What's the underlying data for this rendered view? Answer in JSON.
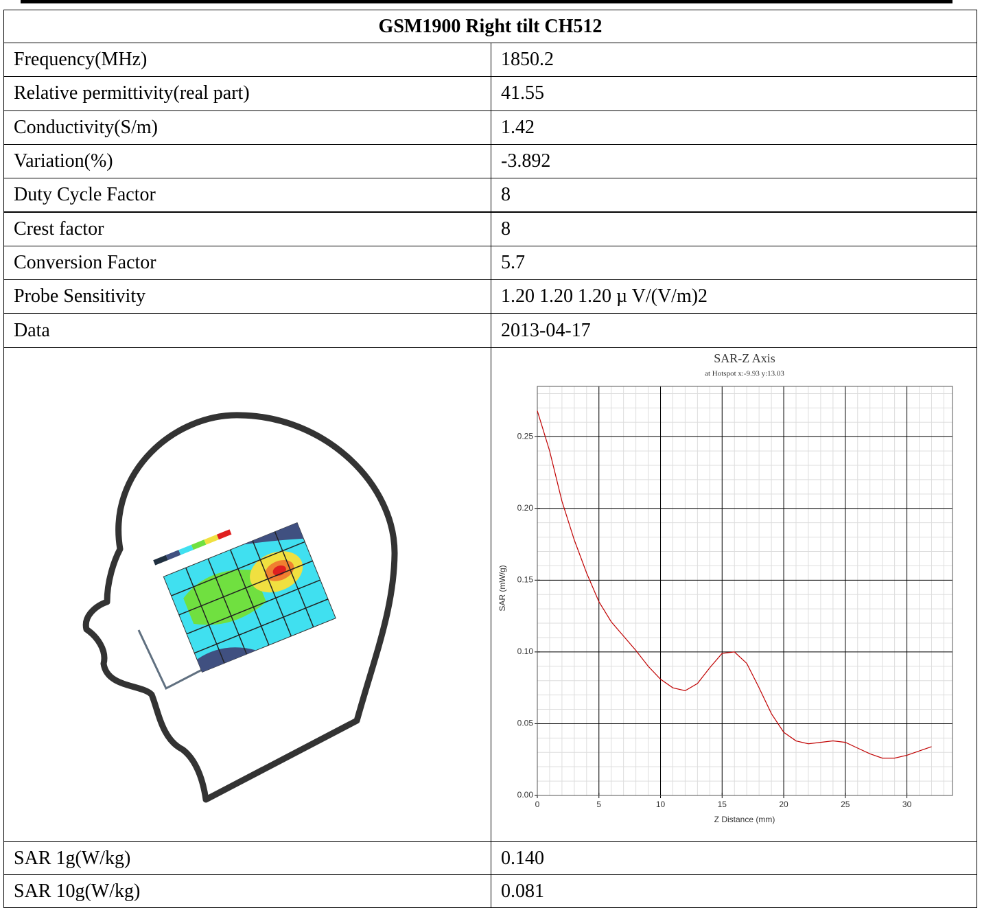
{
  "table": {
    "title": "GSM1900 Right tilt CH512",
    "rows": [
      [
        "Frequency(MHz)",
        "1850.2"
      ],
      [
        "Relative permittivity(real part)",
        "41.55"
      ],
      [
        "Conductivity(S/m)",
        "1.42"
      ],
      [
        "Variation(%)",
        "-3.892"
      ],
      [
        "Duty Cycle Factor",
        "8"
      ],
      [
        "Crest factor",
        "8"
      ],
      [
        "Conversion Factor",
        "5.7"
      ],
      [
        "Probe Sensitivity",
        "1.20 1.20 1.20  µ V/(V/m)2"
      ],
      [
        "Data",
        "2013-04-17"
      ]
    ],
    "result_rows": [
      [
        "SAR 1g(W/kg)",
        "0.140"
      ],
      [
        "SAR 10g(W/kg)",
        "0.081"
      ]
    ]
  },
  "chart_data": {
    "type": "line",
    "title": "SAR-Z Axis",
    "subtitle": "at Hotspot x:-9.93 y:13.03",
    "x_label": "Z Distance (mm)",
    "y_label": "SAR (mW/g)",
    "x": [
      0,
      1,
      2,
      3,
      4,
      5,
      6,
      7,
      8,
      9,
      10,
      11,
      12,
      13,
      14,
      15,
      16,
      17,
      18,
      19,
      20,
      21,
      22,
      23,
      24,
      25,
      26,
      27,
      28,
      29,
      30,
      31,
      32
    ],
    "series": [
      {
        "color": "#c00000",
        "values": [
          0.268,
          0.24,
          0.205,
          0.178,
          0.155,
          0.135,
          0.121,
          0.111,
          0.101,
          0.09,
          0.081,
          0.075,
          0.073,
          0.078,
          0.089,
          0.099,
          0.1,
          0.092,
          0.075,
          0.057,
          0.044,
          0.038,
          0.036,
          0.037,
          0.038,
          0.037,
          0.033,
          0.029,
          0.026,
          0.026,
          0.028,
          0.031,
          0.034
        ]
      }
    ],
    "xlim": [
      0,
      33.7
    ],
    "ylim": [
      0,
      0.285
    ],
    "xticks": [
      0,
      5,
      10,
      15,
      20,
      25,
      30
    ],
    "yticks": [
      {
        "value": 0,
        "label": "0.00"
      },
      {
        "value": 0.05,
        "label": "0.05"
      },
      {
        "value": 0.1,
        "label": "0.10"
      },
      {
        "value": 0.15,
        "label": "0.15"
      },
      {
        "value": 0.2,
        "label": "0.20"
      },
      {
        "value": 0.25,
        "label": "0.25"
      }
    ],
    "grid": true,
    "minor_grid": true
  }
}
